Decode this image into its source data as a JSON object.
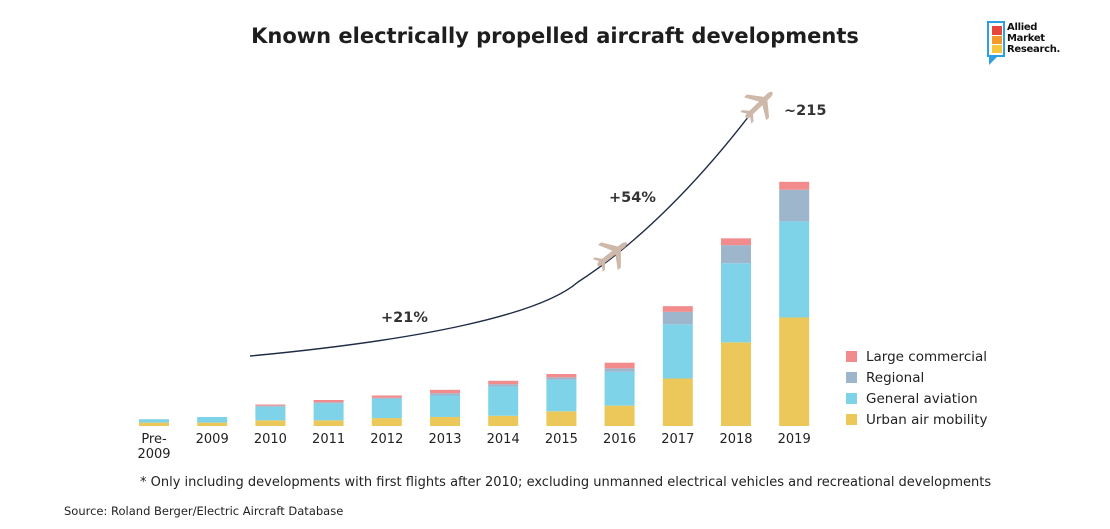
{
  "chart_data": {
    "type": "bar",
    "stacked": true,
    "title": "Known electrically propelled aircraft developments",
    "categories": [
      "Pre-\n2009",
      "2009",
      "2010",
      "2011",
      "2012",
      "2013",
      "2014",
      "2015",
      "2016",
      "2017",
      "2018",
      "2019"
    ],
    "series": [
      {
        "name": "Urban air mobility",
        "color": "#ecc85a",
        "values": [
          3,
          3,
          5,
          5,
          7,
          8,
          9,
          13,
          18,
          42,
          74,
          96
        ]
      },
      {
        "name": "General aviation",
        "color": "#7fd3e8",
        "values": [
          3,
          5,
          12,
          15,
          17,
          19,
          26,
          28,
          30,
          48,
          70,
          85
        ]
      },
      {
        "name": "Regional",
        "color": "#9eb6cc",
        "values": [
          0,
          0,
          1,
          1,
          1,
          2,
          2,
          2,
          3,
          11,
          16,
          28
        ]
      },
      {
        "name": "Large commercial",
        "color": "#f28b8b",
        "values": [
          0,
          0,
          1,
          2,
          2,
          3,
          3,
          3,
          5,
          5,
          6,
          7
        ]
      }
    ],
    "ylim": [
      0,
      230
    ],
    "xlabel": "",
    "ylabel": "",
    "grid": false,
    "legend": "right",
    "annotations": {
      "growth1": "+21%",
      "growth2": "+54%",
      "end_total": "~215"
    }
  },
  "brand": {
    "line1": "Allied",
    "line2": "Market",
    "line3": "Research.",
    "colors": [
      "#e8463a",
      "#f39a2b",
      "#f6c63b"
    ],
    "frame_color": "#2e9fe0"
  },
  "footnote": "* Only including developments with first flights after 2010; excluding unmanned electrical vehicles and recreational developments",
  "source": "Source: Roland Berger/Electric Aircraft Database",
  "icons": {
    "plane": "airplane-icon"
  }
}
